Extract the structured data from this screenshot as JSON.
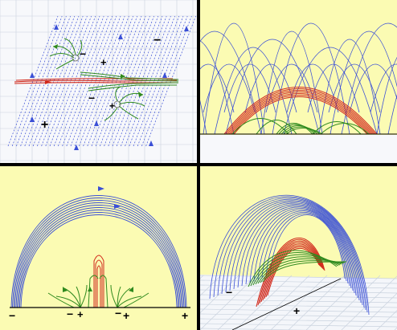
{
  "panels": {
    "top_left": {
      "signs": [
        "−",
        "+",
        "−",
        "−",
        "+",
        "+"
      ]
    },
    "bottom_left": {
      "signs": [
        "−",
        "−",
        "+",
        "−",
        "+",
        "+"
      ]
    },
    "bottom_right": {
      "signs": [
        "−",
        "+"
      ]
    }
  },
  "colors": {
    "field_lines_blue": "#3a4fd6",
    "field_lines_red": "#d22a1c",
    "field_lines_green": "#2f8a1e",
    "panel_background_yellow": "#fbfbb3",
    "panel_background_white": "#f7f8fb",
    "grid": "#c9d2de",
    "divider": "#000000"
  }
}
